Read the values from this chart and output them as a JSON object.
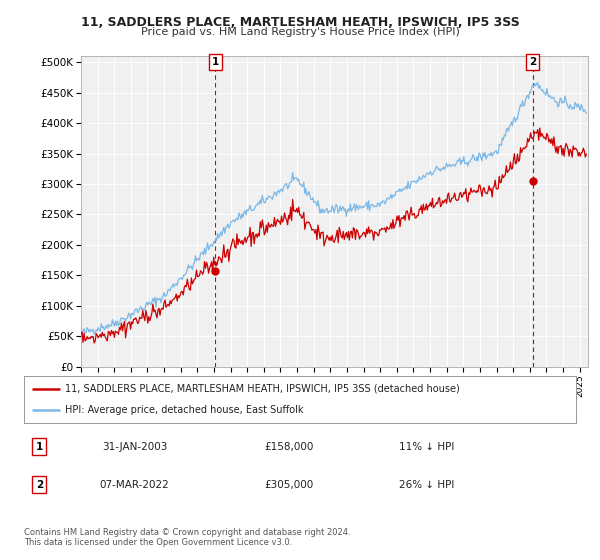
{
  "title": "11, SADDLERS PLACE, MARTLESHAM HEATH, IPSWICH, IP5 3SS",
  "subtitle": "Price paid vs. HM Land Registry's House Price Index (HPI)",
  "ylabel_ticks": [
    "£0",
    "£50K",
    "£100K",
    "£150K",
    "£200K",
    "£250K",
    "£300K",
    "£350K",
    "£400K",
    "£450K",
    "£500K"
  ],
  "ytick_values": [
    0,
    50000,
    100000,
    150000,
    200000,
    250000,
    300000,
    350000,
    400000,
    450000,
    500000
  ],
  "ylim": [
    0,
    510000
  ],
  "xlim_start": 1995.0,
  "xlim_end": 2025.5,
  "hpi_color": "#7ab8e8",
  "price_color": "#cc0000",
  "marker1_x": 2003.08,
  "marker1_y": 158000,
  "marker2_x": 2022.18,
  "marker2_y": 305000,
  "legend_label1": "11, SADDLERS PLACE, MARTLESHAM HEATH, IPSWICH, IP5 3SS (detached house)",
  "legend_label2": "HPI: Average price, detached house, East Suffolk",
  "annotation1_num": "1",
  "annotation1_date": "31-JAN-2003",
  "annotation1_price": "£158,000",
  "annotation1_hpi": "11% ↓ HPI",
  "annotation2_num": "2",
  "annotation2_date": "07-MAR-2022",
  "annotation2_price": "£305,000",
  "annotation2_hpi": "26% ↓ HPI",
  "footer": "Contains HM Land Registry data © Crown copyright and database right 2024.\nThis data is licensed under the Open Government Licence v3.0.",
  "bg_color": "#ffffff",
  "plot_bg_color": "#f0f0f0",
  "grid_color": "#ffffff"
}
